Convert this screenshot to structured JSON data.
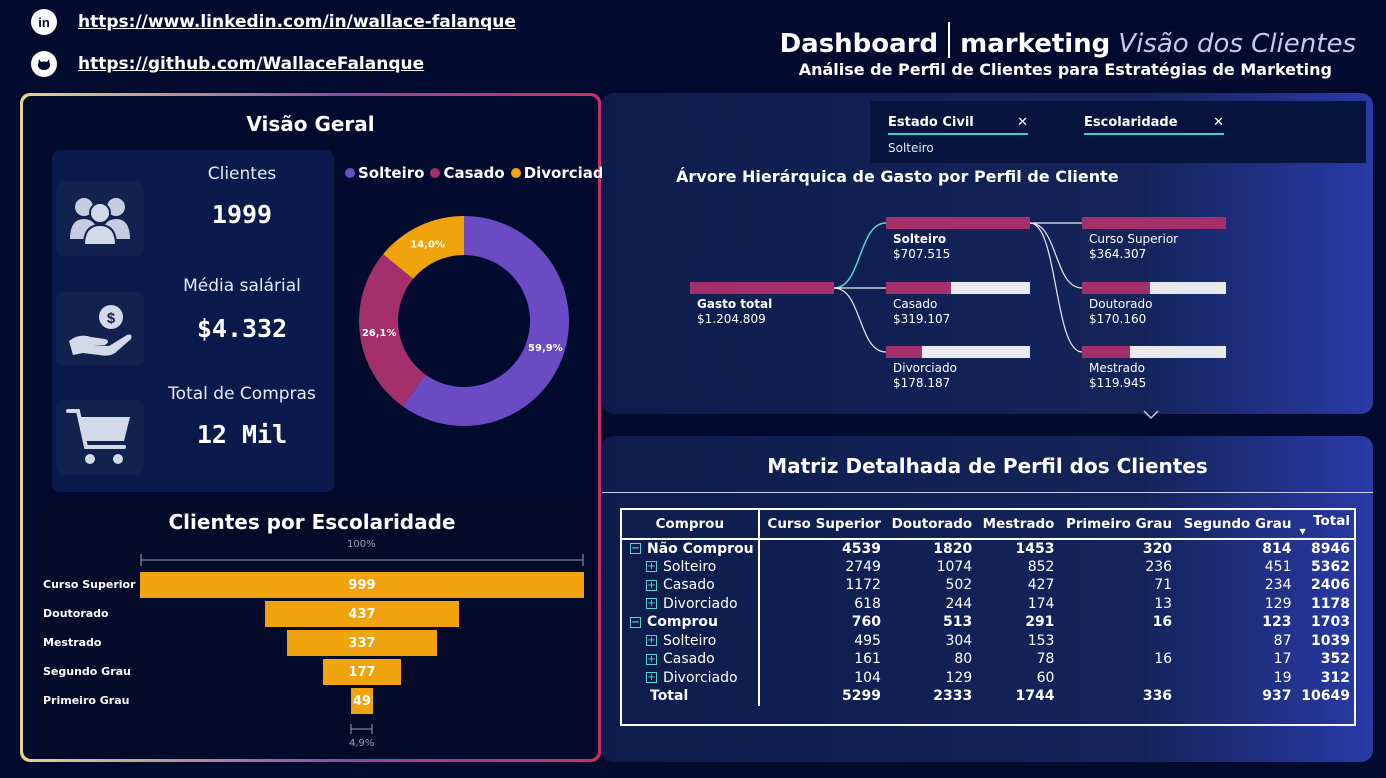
{
  "header": {
    "linkedin_url": "https://www.linkedin.com/in/wallace-falanque",
    "github_url": "https://github.com/WallaceFalanque",
    "title_part1": "Dashboard",
    "title_part2": "marketing",
    "title_part3": "Visão dos Clientes",
    "subtitle": "Análise de Perfil de Clientes para Estratégias de Marketing"
  },
  "overview": {
    "title": "Visão Geral",
    "kpis": [
      {
        "label": "Clientes",
        "value": "1999",
        "icon": "users-icon"
      },
      {
        "label": "Média salárial",
        "value": "$4.332",
        "icon": "money-hand-icon"
      },
      {
        "label": "Total de Compras",
        "value": "12 Mil",
        "icon": "cart-icon"
      }
    ],
    "donut_legend": [
      {
        "label": "Solteiro",
        "color": "#6a4bc4"
      },
      {
        "label": "Casado",
        "color": "#a3306a"
      },
      {
        "label": "Divorciado",
        "color": "#f0a30a"
      }
    ]
  },
  "funnel": {
    "title": "Clientes por Escolaridade",
    "top_pct_label": "100%",
    "bottom_pct_label": "4,9%"
  },
  "filters": [
    {
      "title": "Estado Civil",
      "value": "Solteiro"
    },
    {
      "title": "Escolaridade",
      "value": ""
    }
  ],
  "tree": {
    "title": "Árvore Hierárquica de Gasto por Perfil de Cliente",
    "root": {
      "label": "Gasto total",
      "value": "$1.204.809"
    },
    "level1": [
      {
        "label": "Solteiro",
        "value": "$707.515",
        "fraction": 1.0,
        "bold": true
      },
      {
        "label": "Casado",
        "value": "$319.107",
        "fraction": 0.45
      },
      {
        "label": "Divorciado",
        "value": "$178.187",
        "fraction": 0.25
      }
    ],
    "level2": [
      {
        "label": "Curso Superior",
        "value": "$364.307",
        "fraction": 1.0
      },
      {
        "label": "Doutorado",
        "value": "$170.160",
        "fraction": 0.47
      },
      {
        "label": "Mestrado",
        "value": "$119.945",
        "fraction": 0.33
      }
    ]
  },
  "matrix": {
    "title": "Matriz Detalhada de Perfil dos Clientes",
    "columns": [
      "Comprou",
      "Curso Superior",
      "Doutorado",
      "Mestrado",
      "Primeiro Grau",
      "Segundo Grau",
      "Total"
    ],
    "rows": [
      {
        "type": "group",
        "expander": "⊟",
        "label": "Não Comprou",
        "cells": [
          "4539",
          "1820",
          "1453",
          "320",
          "814",
          "8946"
        ]
      },
      {
        "type": "child",
        "expander": "⊞",
        "label": "Solteiro",
        "cells": [
          "2749",
          "1074",
          "852",
          "236",
          "451",
          "5362"
        ]
      },
      {
        "type": "child",
        "expander": "⊞",
        "label": "Casado",
        "cells": [
          "1172",
          "502",
          "427",
          "71",
          "234",
          "2406"
        ]
      },
      {
        "type": "child",
        "expander": "⊞",
        "label": "Divorciado",
        "cells": [
          "618",
          "244",
          "174",
          "13",
          "129",
          "1178"
        ]
      },
      {
        "type": "group",
        "expander": "⊟",
        "label": "Comprou",
        "cells": [
          "760",
          "513",
          "291",
          "16",
          "123",
          "1703"
        ]
      },
      {
        "type": "child",
        "expander": "⊞",
        "label": "Solteiro",
        "cells": [
          "495",
          "304",
          "153",
          "",
          "87",
          "1039"
        ]
      },
      {
        "type": "child",
        "expander": "⊞",
        "label": "Casado",
        "cells": [
          "161",
          "80",
          "78",
          "16",
          "17",
          "352"
        ]
      },
      {
        "type": "child",
        "expander": "⊞",
        "label": "Divorciado",
        "cells": [
          "104",
          "129",
          "60",
          "",
          "19",
          "312"
        ]
      },
      {
        "type": "total",
        "expander": "",
        "label": "Total",
        "cells": [
          "5299",
          "2333",
          "1744",
          "336",
          "937",
          "10649"
        ]
      }
    ]
  },
  "chart_data": [
    {
      "type": "pie",
      "categories": [
        "Solteiro",
        "Casado",
        "Divorciado"
      ],
      "values": [
        59.9,
        26.1,
        14.0
      ],
      "labels": [
        "59,9%",
        "26,1%",
        "14,0%"
      ],
      "colors": [
        "#6a4bc4",
        "#a3306a",
        "#f0a30a"
      ]
    },
    {
      "type": "bar",
      "categories": [
        "Curso Superior",
        "Doutorado",
        "Mestrado",
        "Segundo Grau",
        "Primeiro Grau"
      ],
      "values": [
        999,
        437,
        337,
        177,
        49
      ],
      "color": "#f0a30a"
    }
  ]
}
